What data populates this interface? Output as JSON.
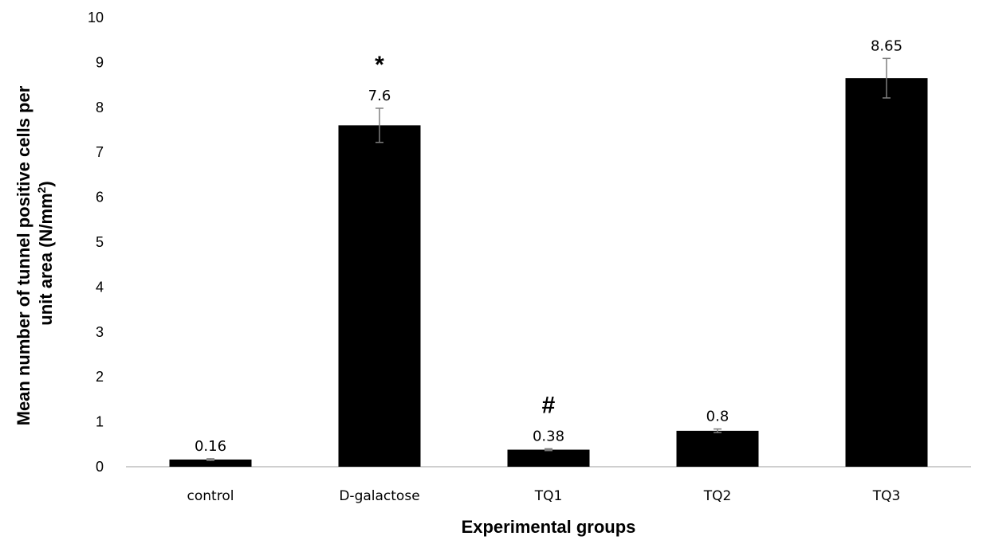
{
  "chart_data": {
    "type": "bar",
    "categories": [
      "control",
      "D-galactose",
      "TQ1",
      "TQ2",
      "TQ3"
    ],
    "values": [
      0.16,
      7.6,
      0.38,
      0.8,
      8.65
    ],
    "data_labels": [
      "0.16",
      "7.6",
      "0.38",
      "0.8",
      "8.65"
    ],
    "error_bars": [
      0.02,
      0.38,
      0.02,
      0.04,
      0.44
    ],
    "annotations": [
      "",
      "*",
      "#",
      "",
      ""
    ],
    "xlabel": "Experimental groups",
    "ylabel_line1": "Mean number of tunnel positive cells per",
    "ylabel_line2_prefix": "unit area (N/mm",
    "ylabel_line2_sup": "2",
    "ylabel_line2_suffix": ")",
    "ylim": [
      0,
      10
    ],
    "yticks": [
      0,
      1,
      2,
      3,
      4,
      5,
      6,
      7,
      8,
      9,
      10
    ],
    "bar_color": "#000000",
    "grid": false,
    "legend": "none"
  }
}
